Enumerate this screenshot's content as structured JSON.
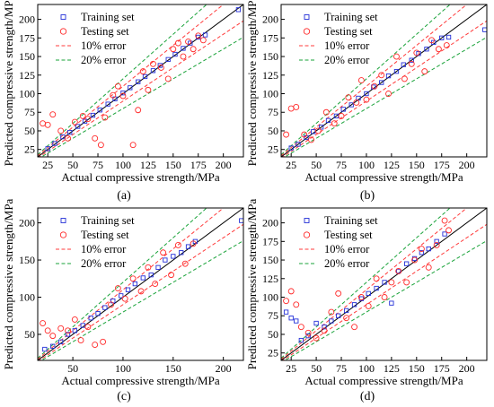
{
  "chart_data": [
    {
      "type": "scatter",
      "panel_label": "(a)",
      "xlabel": "Actual compressive strength/MPa",
      "ylabel": "Predicted compressive strength/MPa",
      "xlim": [
        15,
        220
      ],
      "ylim": [
        15,
        220
      ],
      "xticks": [
        25,
        50,
        75,
        100,
        125,
        150,
        175,
        200
      ],
      "yticks": [
        25,
        50,
        75,
        100,
        125,
        150,
        175,
        200
      ],
      "grid": false,
      "legend_position": "top-left",
      "reference_lines": [
        {
          "name": "10% error",
          "slopes": [
            0.9,
            1.1
          ],
          "color": "#ff3b3b",
          "style": "dashed"
        },
        {
          "name": "20% error",
          "slopes": [
            0.8,
            1.2
          ],
          "color": "#1aa33a",
          "style": "dashed"
        }
      ],
      "series": [
        {
          "name": "Training set",
          "marker": "square",
          "color": "#2430d8",
          "points": [
            [
              25,
              26
            ],
            [
              32,
              33
            ],
            [
              40,
              42
            ],
            [
              47,
              48
            ],
            [
              55,
              56
            ],
            [
              62,
              63
            ],
            [
              70,
              71
            ],
            [
              77,
              78
            ],
            [
              85,
              86
            ],
            [
              92,
              93
            ],
            [
              100,
              101
            ],
            [
              107,
              108
            ],
            [
              115,
              116
            ],
            [
              122,
              123
            ],
            [
              130,
              131
            ],
            [
              137,
              138
            ],
            [
              145,
              146
            ],
            [
              152,
              153
            ],
            [
              160,
              161
            ],
            [
              167,
              168
            ],
            [
              175,
              176
            ],
            [
              182,
              179
            ],
            [
              215,
              213
            ]
          ]
        },
        {
          "name": "Testing set",
          "marker": "circle",
          "color": "#ff2a2a",
          "points": [
            [
              20,
              60
            ],
            [
              25,
              58
            ],
            [
              30,
              72
            ],
            [
              38,
              50
            ],
            [
              45,
              40
            ],
            [
              52,
              62
            ],
            [
              60,
              70
            ],
            [
              65,
              66
            ],
            [
              72,
              40
            ],
            [
              78,
              31
            ],
            [
              82,
              68
            ],
            [
              90,
              98
            ],
            [
              95,
              110
            ],
            [
              100,
              97
            ],
            [
              110,
              31
            ],
            [
              115,
              78
            ],
            [
              120,
              130
            ],
            [
              125,
              105
            ],
            [
              130,
              140
            ],
            [
              138,
              135
            ],
            [
              145,
              120
            ],
            [
              150,
              160
            ],
            [
              155,
              168
            ],
            [
              160,
              150
            ],
            [
              165,
              170
            ],
            [
              170,
              160
            ],
            [
              175,
              178
            ],
            [
              180,
              172
            ]
          ]
        }
      ]
    },
    {
      "type": "scatter",
      "panel_label": "(b)",
      "xlabel": "Actual compressive strength/MPa",
      "ylabel": "Predicted compressive strength/MPa",
      "xlim": [
        15,
        220
      ],
      "ylim": [
        15,
        220
      ],
      "xticks": [
        25,
        50,
        75,
        100,
        125,
        150,
        175,
        200
      ],
      "yticks": [
        25,
        50,
        75,
        100,
        125,
        150,
        175,
        200
      ],
      "grid": false,
      "legend_position": "top-left",
      "reference_lines": [
        {
          "name": "10% error",
          "slopes": [
            0.9,
            1.1
          ],
          "color": "#ff3b3b",
          "style": "dashed"
        },
        {
          "name": "20% error",
          "slopes": [
            0.8,
            1.2
          ],
          "color": "#1aa33a",
          "style": "dashed"
        }
      ],
      "series": [
        {
          "name": "Training set",
          "marker": "square",
          "color": "#2430d8",
          "points": [
            [
              25,
              27
            ],
            [
              32,
              32
            ],
            [
              40,
              41
            ],
            [
              47,
              49
            ],
            [
              55,
              55
            ],
            [
              62,
              64
            ],
            [
              70,
              70
            ],
            [
              77,
              79
            ],
            [
              85,
              85
            ],
            [
              92,
              94
            ],
            [
              100,
              100
            ],
            [
              107,
              109
            ],
            [
              115,
              115
            ],
            [
              122,
              124
            ],
            [
              130,
              130
            ],
            [
              137,
              139
            ],
            [
              145,
              145
            ],
            [
              152,
              154
            ],
            [
              160,
              160
            ],
            [
              167,
              169
            ],
            [
              175,
              175
            ],
            [
              182,
              176
            ],
            [
              218,
              186
            ]
          ]
        },
        {
          "name": "Testing set",
          "marker": "circle",
          "color": "#ff2a2a",
          "points": [
            [
              20,
              45
            ],
            [
              25,
              80
            ],
            [
              30,
              82
            ],
            [
              38,
              45
            ],
            [
              45,
              38
            ],
            [
              52,
              50
            ],
            [
              60,
              75
            ],
            [
              68,
              60
            ],
            [
              75,
              70
            ],
            [
              82,
              95
            ],
            [
              90,
              88
            ],
            [
              95,
              118
            ],
            [
              100,
              92
            ],
            [
              108,
              110
            ],
            [
              115,
              125
            ],
            [
              122,
              100
            ],
            [
              130,
              150
            ],
            [
              138,
              120
            ],
            [
              145,
              140
            ],
            [
              150,
              155
            ],
            [
              158,
              130
            ],
            [
              165,
              172
            ],
            [
              172,
              160
            ],
            [
              180,
              165
            ]
          ]
        }
      ]
    },
    {
      "type": "scatter",
      "panel_label": "(c)",
      "xlabel": "Actual compressive strength/MPa",
      "ylabel": "Predicted compressive strength/MPa",
      "xlim": [
        15,
        220
      ],
      "ylim": [
        15,
        220
      ],
      "xticks": [
        50,
        100,
        150,
        200
      ],
      "yticks": [
        50,
        100,
        150,
        200
      ],
      "grid": false,
      "legend_position": "top-left",
      "reference_lines": [
        {
          "name": "10% error",
          "slopes": [
            0.9,
            1.1
          ],
          "color": "#ff3b3b",
          "style": "dashed"
        },
        {
          "name": "20% error",
          "slopes": [
            0.8,
            1.2
          ],
          "color": "#1aa33a",
          "style": "dashed"
        }
      ],
      "series": [
        {
          "name": "Training set",
          "marker": "square",
          "color": "#2430d8",
          "points": [
            [
              22,
              30
            ],
            [
              30,
              34
            ],
            [
              38,
              40
            ],
            [
              45,
              50
            ],
            [
              52,
              55
            ],
            [
              60,
              62
            ],
            [
              68,
              72
            ],
            [
              75,
              78
            ],
            [
              82,
              86
            ],
            [
              90,
              95
            ],
            [
              98,
              102
            ],
            [
              105,
              110
            ],
            [
              112,
              118
            ],
            [
              120,
              126
            ],
            [
              128,
              130
            ],
            [
              135,
              140
            ],
            [
              142,
              150
            ],
            [
              150,
              155
            ],
            [
              158,
              160
            ],
            [
              165,
              168
            ],
            [
              172,
              175
            ],
            [
              218,
              203
            ]
          ]
        },
        {
          "name": "Testing set",
          "marker": "circle",
          "color": "#ff2a2a",
          "points": [
            [
              20,
              65
            ],
            [
              25,
              55
            ],
            [
              30,
              48
            ],
            [
              38,
              58
            ],
            [
              45,
              55
            ],
            [
              52,
              70
            ],
            [
              58,
              42
            ],
            [
              65,
              60
            ],
            [
              72,
              36
            ],
            [
              80,
              40
            ],
            [
              88,
              90
            ],
            [
              95,
              112
            ],
            [
              102,
              98
            ],
            [
              110,
              125
            ],
            [
              118,
              108
            ],
            [
              125,
              140
            ],
            [
              132,
              118
            ],
            [
              140,
              160
            ],
            [
              148,
              130
            ],
            [
              155,
              170
            ],
            [
              162,
              145
            ],
            [
              170,
              172
            ]
          ]
        }
      ]
    },
    {
      "type": "scatter",
      "panel_label": "(d)",
      "xlabel": "Actual compressive strength/MPa",
      "ylabel": "Predicted compressive strength/MPa",
      "xlim": [
        15,
        220
      ],
      "ylim": [
        15,
        220
      ],
      "xticks": [
        25,
        50,
        75,
        100,
        125,
        150,
        175,
        200
      ],
      "yticks": [
        25,
        50,
        75,
        100,
        125,
        150,
        175,
        200
      ],
      "grid": false,
      "legend_position": "top-left",
      "reference_lines": [
        {
          "name": "10% error",
          "slopes": [
            0.9,
            1.1
          ],
          "color": "#ff3b3b",
          "style": "dashed"
        },
        {
          "name": "20% error",
          "slopes": [
            0.8,
            1.2
          ],
          "color": "#1aa33a",
          "style": "dashed"
        }
      ],
      "series": [
        {
          "name": "Training set",
          "marker": "square",
          "color": "#2430d8",
          "points": [
            [
              20,
              80
            ],
            [
              25,
              72
            ],
            [
              30,
              68
            ],
            [
              35,
              42
            ],
            [
              42,
              48
            ],
            [
              50,
              65
            ],
            [
              58,
              60
            ],
            [
              65,
              68
            ],
            [
              72,
              75
            ],
            [
              80,
              82
            ],
            [
              88,
              90
            ],
            [
              95,
              98
            ],
            [
              102,
              105
            ],
            [
              110,
              112
            ],
            [
              118,
              120
            ],
            [
              125,
              92
            ],
            [
              132,
              135
            ],
            [
              140,
              145
            ],
            [
              148,
              152
            ],
            [
              155,
              160
            ],
            [
              162,
              165
            ],
            [
              170,
              175
            ],
            [
              178,
              185
            ]
          ]
        },
        {
          "name": "Testing set",
          "marker": "circle",
          "color": "#ff2a2a",
          "points": [
            [
              20,
              95
            ],
            [
              25,
              108
            ],
            [
              30,
              90
            ],
            [
              35,
              60
            ],
            [
              42,
              52
            ],
            [
              50,
              45
            ],
            [
              58,
              55
            ],
            [
              65,
              80
            ],
            [
              72,
              105
            ],
            [
              80,
              72
            ],
            [
              88,
              60
            ],
            [
              95,
              100
            ],
            [
              102,
              88
            ],
            [
              110,
              125
            ],
            [
              118,
              100
            ],
            [
              125,
              120
            ],
            [
              132,
              135
            ],
            [
              140,
              120
            ],
            [
              148,
              150
            ],
            [
              155,
              165
            ],
            [
              162,
              140
            ],
            [
              170,
              170
            ],
            [
              178,
              203
            ],
            [
              182,
              190
            ]
          ]
        }
      ]
    }
  ]
}
